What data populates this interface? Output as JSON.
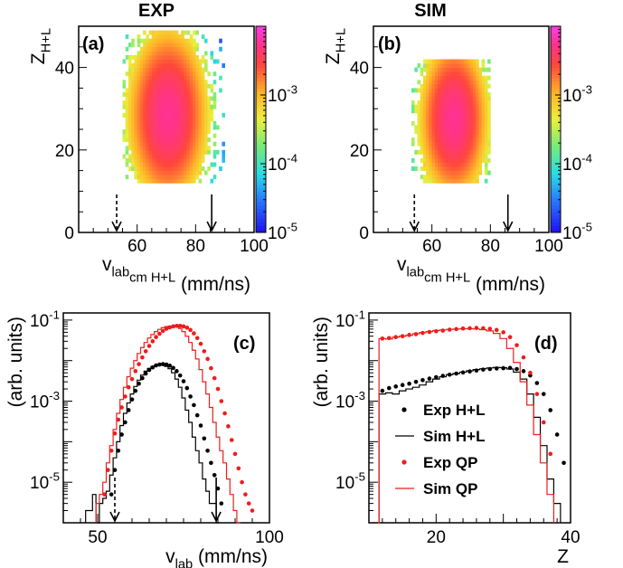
{
  "chart_data": [
    {
      "id": "a",
      "type": "heatmap",
      "title": "EXP",
      "panel_label": "(a)",
      "ylabel": "Z_{H+L}",
      "xlabel": "v_{lab}^{cm H+L} (mm/ns)",
      "xlim": [
        40,
        100
      ],
      "ylim": [
        0,
        50
      ],
      "xticks": [
        "60",
        "80",
        "100"
      ],
      "yticks": [
        "0",
        "20",
        "40"
      ],
      "zlim": [
        1e-05,
        0.01
      ],
      "z_scale": "log",
      "colorbar_ticks": [
        "10^{-5}",
        "10^{-4}",
        "10^{-3}"
      ],
      "arrows": [
        {
          "x": 53,
          "style": "dashed"
        },
        {
          "x": 85.5,
          "style": "solid"
        }
      ],
      "density": {
        "peak_x": 70,
        "peak_y": 28,
        "sx": 7,
        "sy": 10,
        "x_range": [
          55,
          90
        ],
        "y_range": [
          12,
          49
        ],
        "peak_value": 0.006
      }
    },
    {
      "id": "b",
      "type": "heatmap",
      "title": "SIM",
      "panel_label": "(b)",
      "ylabel": "Z_{H+L}",
      "xlabel": "v_{lab}^{cm H+L} (mm/ns)",
      "xlim": [
        40,
        100
      ],
      "ylim": [
        0,
        50
      ],
      "xticks": [
        "60",
        "80",
        "100"
      ],
      "yticks": [
        "0",
        "20",
        "40"
      ],
      "zlim": [
        1e-05,
        0.01
      ],
      "z_scale": "log",
      "colorbar_ticks": [
        "10^{-5}",
        "10^{-4}",
        "10^{-3}"
      ],
      "arrows": [
        {
          "x": 54,
          "style": "dashed"
        },
        {
          "x": 86,
          "style": "solid"
        }
      ],
      "density": {
        "peak_x": 67,
        "peak_y": 27,
        "sx": 6,
        "sy": 9,
        "x_range": [
          53,
          80
        ],
        "y_range": [
          12,
          42
        ],
        "peak_value": 0.006
      }
    },
    {
      "id": "c",
      "type": "line",
      "panel_label": "(c)",
      "ylabel": "(arb. units)",
      "xlabel": "v_{lab} (mm/ns)",
      "xlim": [
        40,
        100
      ],
      "ylim": [
        1e-06,
        0.15
      ],
      "y_scale": "log",
      "xticks": [
        "50",
        "100"
      ],
      "yticks": [
        "10^{-5}",
        "10^{-3}",
        "10^{-1}"
      ],
      "arrows": [
        {
          "x": 55,
          "style": "dashed"
        },
        {
          "x": 84.5,
          "style": "solid"
        }
      ],
      "series": [
        {
          "name": "Exp H+L",
          "style": "dots",
          "color": "#000000",
          "x": [
            54,
            55,
            56,
            57,
            58,
            59,
            60,
            61,
            62,
            63,
            64,
            65,
            66,
            67,
            68,
            69,
            70,
            71,
            72,
            73,
            74,
            75,
            76,
            77,
            78,
            79,
            80,
            81,
            82,
            83,
            84,
            85,
            86
          ],
          "y": [
            5e-06,
            2e-05,
            6e-05,
            0.00015,
            0.0003,
            0.0006,
            0.0011,
            0.0018,
            0.0027,
            0.0037,
            0.0048,
            0.0059,
            0.0068,
            0.0076,
            0.008,
            0.0082,
            0.008,
            0.0075,
            0.0066,
            0.0055,
            0.0043,
            0.0031,
            0.0021,
            0.0013,
            0.0008,
            0.00045,
            0.00025,
            0.00012,
            6e-05,
            3e-05,
            1.5e-05,
            7e-06,
            3e-06
          ]
        },
        {
          "name": "Sim H+L",
          "style": "step",
          "color": "#000000",
          "x": [
            47,
            48,
            49,
            50,
            51,
            52,
            53,
            54,
            55,
            56,
            57,
            58,
            59,
            60,
            61,
            62,
            63,
            64,
            65,
            66,
            67,
            68,
            69,
            70,
            71,
            72,
            73,
            74,
            75,
            76,
            77,
            78,
            79,
            80,
            81,
            82,
            83,
            84,
            85
          ],
          "y": [
            2e-06,
            2e-06,
            5e-06,
            1e-06,
            3e-06,
            4e-06,
            6e-06,
            1.5e-05,
            4e-05,
            0.0001,
            0.00025,
            0.0005,
            0.0009,
            0.0015,
            0.0023,
            0.0033,
            0.0044,
            0.0055,
            0.0064,
            0.0071,
            0.0076,
            0.0078,
            0.0077,
            0.0072,
            0.0063,
            0.005,
            0.0035,
            0.0022,
            0.0012,
            0.0006,
            0.0003,
            0.00013,
            6e-05,
            3e-05,
            1.2e-05,
            6e-06,
            3e-06,
            3e-06,
            1e-06
          ]
        },
        {
          "name": "Exp QP",
          "style": "dots",
          "color": "#ee1c1c",
          "x": [
            52,
            53,
            54,
            55,
            56,
            57,
            58,
            59,
            60,
            61,
            62,
            63,
            64,
            65,
            66,
            67,
            68,
            69,
            70,
            71,
            72,
            73,
            74,
            75,
            76,
            77,
            78,
            79,
            80,
            81,
            82,
            83,
            84,
            85,
            86,
            87,
            88,
            89,
            90,
            91,
            92,
            93,
            94,
            95
          ],
          "y": [
            5e-06,
            2e-05,
            6e-05,
            0.00016,
            0.00035,
            0.0007,
            0.0013,
            0.0022,
            0.0035,
            0.0055,
            0.0082,
            0.012,
            0.017,
            0.023,
            0.03,
            0.038,
            0.046,
            0.054,
            0.061,
            0.066,
            0.07,
            0.072,
            0.072,
            0.07,
            0.065,
            0.057,
            0.047,
            0.036,
            0.026,
            0.017,
            0.011,
            0.0065,
            0.0037,
            0.002,
            0.001,
            0.0005,
            0.00024,
            0.00011,
            5e-05,
            2.2e-05,
            1e-05,
            5e-06,
            3e-06,
            2e-06
          ]
        },
        {
          "name": "Sim QP",
          "style": "step",
          "color": "#ee1c1c",
          "x": [
            50,
            51,
            52,
            53,
            54,
            55,
            56,
            57,
            58,
            59,
            60,
            61,
            62,
            63,
            64,
            65,
            66,
            67,
            68,
            69,
            70,
            71,
            72,
            73,
            74,
            75,
            76,
            77,
            78,
            79,
            80,
            81,
            82,
            83,
            84,
            85,
            86,
            87,
            88,
            89,
            90,
            91
          ],
          "y": [
            3e-06,
            5e-06,
            1e-05,
            3e-05,
            8e-05,
            0.0002,
            0.0005,
            0.0011,
            0.0022,
            0.004,
            0.0065,
            0.01,
            0.015,
            0.021,
            0.028,
            0.036,
            0.044,
            0.052,
            0.059,
            0.065,
            0.069,
            0.071,
            0.071,
            0.068,
            0.062,
            0.052,
            0.04,
            0.028,
            0.018,
            0.011,
            0.006,
            0.003,
            0.0015,
            0.0007,
            0.0003,
            0.00013,
            6e-05,
            3e-05,
            1.2e-05,
            5e-06,
            2e-06,
            1e-06
          ]
        }
      ]
    },
    {
      "id": "d",
      "type": "line",
      "panel_label": "(d)",
      "ylabel": "(arb. units)",
      "xlabel": "Z",
      "xlim": [
        10,
        40
      ],
      "ylim": [
        1e-06,
        0.15
      ],
      "y_scale": "log",
      "xticks": [
        "20",
        "40"
      ],
      "yticks": [
        "10^{-5}",
        "10^{-3}",
        "10^{-1}"
      ],
      "legend": {
        "position": "bottom-right",
        "entries": [
          "Exp H+L",
          "Sim H+L",
          "Exp QP",
          "Sim QP"
        ]
      },
      "series": [
        {
          "name": "Exp H+L",
          "style": "dots",
          "color": "#000000",
          "x": [
            12,
            13,
            14,
            15,
            16,
            17,
            18,
            19,
            20,
            21,
            22,
            23,
            24,
            25,
            26,
            27,
            28,
            29,
            30,
            31,
            32,
            33,
            34,
            35,
            36,
            37,
            38,
            39
          ],
          "y": [
            0.0018,
            0.0021,
            0.0023,
            0.0025,
            0.0027,
            0.003,
            0.0033,
            0.0036,
            0.0039,
            0.0042,
            0.0045,
            0.0048,
            0.0051,
            0.0054,
            0.0057,
            0.006,
            0.0062,
            0.0064,
            0.0065,
            0.0066,
            0.0062,
            0.0055,
            0.0043,
            0.0028,
            0.0015,
            0.0006,
            0.00015,
            3e-05
          ]
        },
        {
          "name": "Sim H+L",
          "style": "step",
          "color": "#000000",
          "x": [
            12,
            13,
            14,
            15,
            16,
            17,
            18,
            19,
            20,
            21,
            22,
            23,
            24,
            25,
            26,
            27,
            28,
            29,
            30,
            31,
            32,
            33,
            34,
            35,
            36,
            37,
            38
          ],
          "y": [
            0.0015,
            0.0016,
            0.0015,
            0.0018,
            0.002,
            0.0022,
            0.0025,
            0.003,
            0.0035,
            0.004,
            0.0045,
            0.0048,
            0.0052,
            0.0056,
            0.006,
            0.0063,
            0.0066,
            0.0068,
            0.0067,
            0.0062,
            0.0052,
            0.0035,
            0.0015,
            0.0004,
            8e-05,
            1.2e-05,
            3e-06
          ]
        },
        {
          "name": "Exp QP",
          "style": "dots",
          "color": "#ee1c1c",
          "x": [
            12,
            13,
            14,
            15,
            16,
            17,
            18,
            19,
            20,
            21,
            22,
            23,
            24,
            25,
            26,
            27,
            28,
            29,
            30,
            31,
            32,
            33,
            34,
            35,
            36,
            37
          ],
          "y": [
            0.035,
            0.036,
            0.038,
            0.04,
            0.043,
            0.045,
            0.048,
            0.051,
            0.053,
            0.055,
            0.058,
            0.06,
            0.062,
            0.063,
            0.064,
            0.063,
            0.061,
            0.057,
            0.05,
            0.038,
            0.024,
            0.012,
            0.005,
            0.0015,
            0.0003,
            5e-05
          ]
        },
        {
          "name": "Sim QP",
          "style": "step",
          "color": "#ee1c1c",
          "x": [
            11,
            12,
            13,
            14,
            15,
            16,
            17,
            18,
            19,
            20,
            21,
            22,
            23,
            24,
            25,
            26,
            27,
            28,
            29,
            30,
            31,
            32,
            33,
            34,
            35,
            36,
            37
          ],
          "y": [
            1e-06,
            0.035,
            0.034,
            0.038,
            0.04,
            0.042,
            0.046,
            0.049,
            0.052,
            0.055,
            0.057,
            0.059,
            0.06,
            0.061,
            0.061,
            0.06,
            0.058,
            0.054,
            0.047,
            0.035,
            0.02,
            0.009,
            0.003,
            0.0008,
            0.00015,
            3e-05,
            5e-06
          ]
        }
      ]
    }
  ]
}
